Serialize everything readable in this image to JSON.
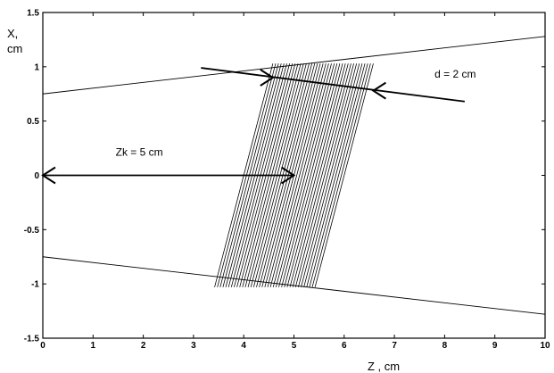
{
  "chart_data": {
    "type": "line",
    "xlabel": "Z , cm",
    "ylabel": "X,",
    "ylabel_unit": "cm",
    "xlim": [
      0,
      10
    ],
    "ylim": [
      -1.5,
      1.5
    ],
    "x_ticks": [
      "0",
      "1",
      "2",
      "3",
      "4",
      "5",
      "6",
      "7",
      "8",
      "9",
      "10"
    ],
    "y_ticks": [
      "1.5",
      "1",
      "0.5",
      "0",
      "-0.5",
      "-1",
      "-1.5"
    ],
    "grid": false,
    "lines": [
      {
        "x": [
          0,
          10
        ],
        "y": [
          0.75,
          1.28
        ]
      },
      {
        "x": [
          0,
          10
        ],
        "y": [
          -0.75,
          -1.28
        ]
      }
    ],
    "hatched_region": {
      "corners": [
        [
          3.42,
          -1.03
        ],
        [
          5.42,
          -1.03
        ],
        [
          6.58,
          1.03
        ],
        [
          4.58,
          1.03
        ]
      ],
      "line_count": 36
    },
    "annotations": [
      {
        "text": "d = 2 cm",
        "text_pos": [
          7.8,
          0.9
        ],
        "arrow_line": {
          "x": [
            3.15,
            8.4
          ],
          "y": [
            0.99,
            0.68
          ]
        },
        "arrow_tips": [
          [
            4.58,
            0.9
          ],
          [
            6.58,
            0.78
          ]
        ]
      },
      {
        "text": "Zk = 5 cm",
        "text_pos": [
          1.45,
          0.18
        ],
        "double_arrow": {
          "x": [
            0,
            5.0
          ],
          "y": [
            0,
            0
          ]
        }
      }
    ]
  }
}
